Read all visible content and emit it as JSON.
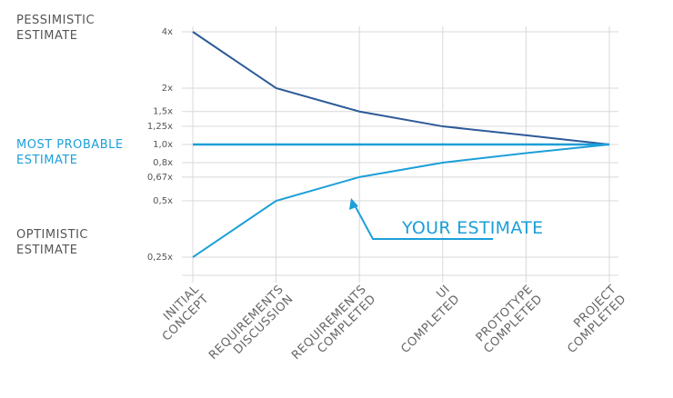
{
  "chart_data": {
    "type": "line",
    "categories": [
      "INITIAL CONCEPT",
      "REQUIREMENTS DISCUSSION",
      "REQUIREMENTS COMPLETED",
      "UI COMPLETED",
      "PROTOTYPE COMPLETED",
      "PROJECT COMPLETED"
    ],
    "series": [
      {
        "name": "PESSIMISTIC ESTIMATE",
        "color": "#2d5a98",
        "label_color": "#555555",
        "values": [
          4,
          2,
          1.5,
          1.25,
          1.12,
          1.0
        ]
      },
      {
        "name": "MOST PROBABLE ESTIMATE",
        "color": "#1c9fd8",
        "label_color": "#1c9fd8",
        "values": [
          1.0,
          1.0,
          1.0,
          1.0,
          1.0,
          1.0
        ]
      },
      {
        "name": "OPTIMISTIC ESTIMATE",
        "color": "#1c9fd8",
        "label_color": "#555555",
        "values": [
          0.25,
          0.5,
          0.67,
          0.8,
          0.9,
          1.0
        ]
      }
    ],
    "log_scale": true,
    "ylim": [
      0.2,
      4
    ],
    "yticks": [
      {
        "value": 4,
        "label": "4x"
      },
      {
        "value": 2,
        "label": "2x"
      },
      {
        "value": 1.5,
        "label": "1,5x"
      },
      {
        "value": 1.25,
        "label": "1,25x"
      },
      {
        "value": 1.0,
        "label": "1,0x"
      },
      {
        "value": 0.8,
        "label": "0,8x"
      },
      {
        "value": 0.67,
        "label": "0,67x"
      },
      {
        "value": 0.5,
        "label": "0,5x"
      },
      {
        "value": 0.25,
        "label": "0,25x"
      }
    ],
    "grid": true,
    "annotation": "YOUR ESTIMATE"
  }
}
